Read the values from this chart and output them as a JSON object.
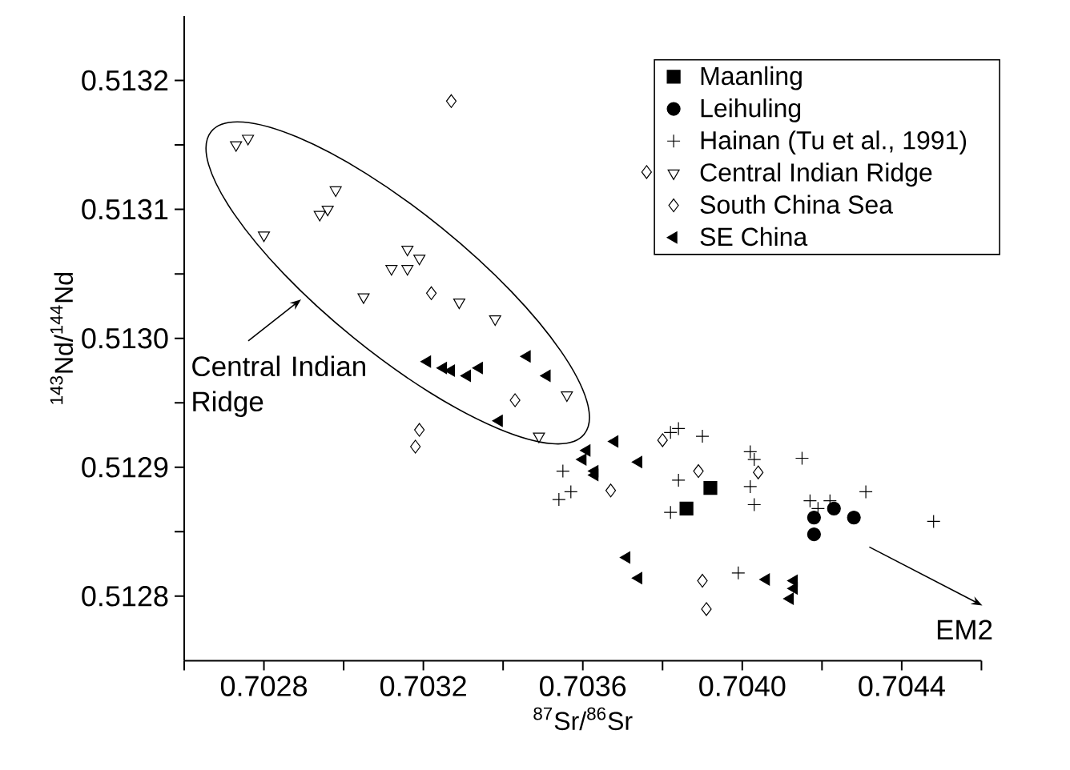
{
  "chart_data": {
    "type": "scatter",
    "xlabel": "$^{87}$Sr/$^{86}$Sr",
    "ylabel": "$^{143}$Nd/$^{144}$Nd",
    "xlim": [
      0.7026,
      0.7046
    ],
    "ylim": [
      0.51275,
      0.51325
    ],
    "xticks": [
      {
        "value": 0.7026,
        "label": null
      },
      0.7028,
      {
        "value": 0.703,
        "label": null
      },
      0.7032,
      {
        "value": 0.7034,
        "label": null
      },
      0.7036,
      {
        "value": 0.7038,
        "label": null
      },
      {
        "value": 0.704,
        "label": "0.7040"
      },
      {
        "value": 0.7042,
        "label": null
      },
      0.7044,
      {
        "value": 0.7046,
        "label": null
      }
    ],
    "yticks": [
      0.5128,
      {
        "value": 0.51285,
        "label": null
      },
      0.5129,
      {
        "value": 0.51295,
        "label": null
      },
      {
        "value": 0.513,
        "label": "0.5130"
      },
      {
        "value": 0.51305,
        "label": null
      },
      0.5131,
      {
        "value": 0.51315,
        "label": null
      },
      0.5132
    ],
    "legend": "top right",
    "grid": false,
    "series": [
      {
        "name": "Maanling",
        "color": "#000000",
        "marker": "square",
        "x": [
          0.70392,
          0.70386
        ],
        "values": [
          0.512884,
          0.512868
        ]
      },
      {
        "name": "Leihuling",
        "color": "#000000",
        "marker": "circle",
        "x": [
          0.70418,
          0.70423,
          0.70428,
          0.70418
        ],
        "values": [
          0.512861,
          0.512868,
          0.512861,
          0.512848
        ]
      },
      {
        "name": "Hainan (Tu et al., 1991)",
        "color": "#000000",
        "marker": "cross",
        "x": [
          0.70355,
          0.70354,
          0.70357,
          0.70382,
          0.70384,
          0.7039,
          0.70384,
          0.70382,
          0.70402,
          0.70403,
          0.70402,
          0.70403,
          0.70415,
          0.70417,
          0.70419,
          0.70422,
          0.70431,
          0.70448,
          0.70399
        ],
        "values": [
          0.512897,
          0.512875,
          0.512881,
          0.512927,
          0.51293,
          0.512924,
          0.51289,
          0.512865,
          0.512912,
          0.512906,
          0.512885,
          0.512871,
          0.512907,
          0.512874,
          0.512868,
          0.512874,
          0.512881,
          0.512858,
          0.512818
        ]
      },
      {
        "name": "Central Indian Ridge",
        "color": "#000000",
        "marker": "triangle",
        "x": [
          0.70273,
          0.70276,
          0.70298,
          0.70294,
          0.70296,
          0.7028,
          0.70316,
          0.70319,
          0.70312,
          0.70316,
          0.70305,
          0.70329,
          0.70338,
          0.70356,
          0.70349
        ],
        "values": [
          0.51315,
          0.513155,
          0.513115,
          0.513096,
          0.5131,
          0.51308,
          0.513069,
          0.513062,
          0.513054,
          0.513054,
          0.513032,
          0.513028,
          0.513015,
          0.512956,
          0.512924
        ]
      },
      {
        "name": "South China Sea",
        "color": "#000000",
        "marker": "diamond",
        "x": [
          0.70327,
          0.70322,
          0.70343,
          0.70319,
          0.70318,
          0.70376,
          0.7038,
          0.70389,
          0.70404,
          0.70367,
          0.7039,
          0.70391
        ],
        "values": [
          0.513184,
          0.513035,
          0.512952,
          0.512929,
          0.512916,
          0.513129,
          0.512921,
          0.512897,
          0.512896,
          0.512882,
          0.512812,
          0.51279
        ]
      },
      {
        "name": "SE China",
        "color": "#000000",
        "marker": "triangle",
        "x": [
          0.70321,
          0.70325,
          0.70327,
          0.70331,
          0.70334,
          0.70346,
          0.70351,
          0.70339,
          0.70368,
          0.70361,
          0.7036,
          0.70363,
          0.70363,
          0.70374,
          0.70371,
          0.70374,
          0.70406,
          0.70413,
          0.70413,
          0.70412
        ],
        "values": [
          0.512982,
          0.512977,
          0.512975,
          0.512971,
          0.512977,
          0.512986,
          0.512971,
          0.512936,
          0.51292,
          0.512913,
          0.512906,
          0.512897,
          0.512894,
          0.512904,
          0.51283,
          0.512814,
          0.512813,
          0.512812,
          0.512806,
          0.512798
        ]
      }
    ],
    "annotations": [
      "Central Indian Ridge",
      "EM2"
    ]
  }
}
